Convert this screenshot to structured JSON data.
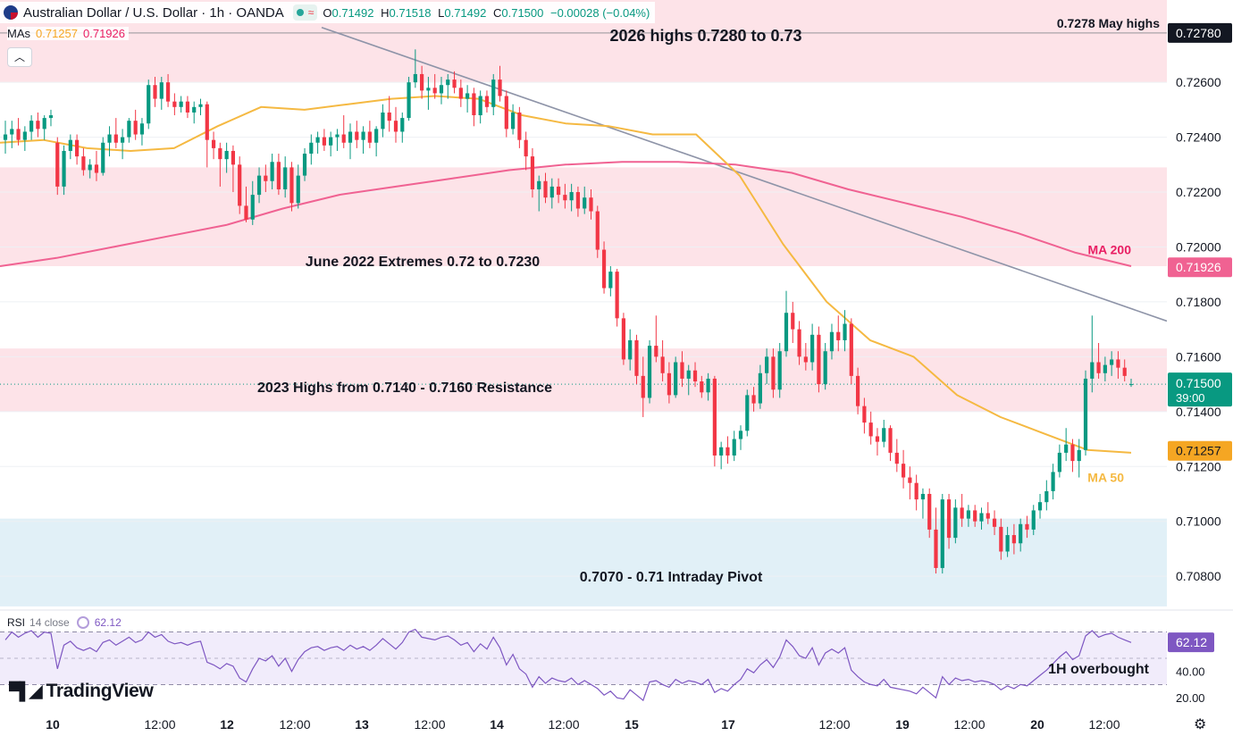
{
  "header": {
    "title": "Australian Dollar / U.S. Dollar · 1h · OANDA",
    "ohlc": {
      "open_label": "O",
      "open": "0.71492",
      "high_label": "H",
      "high": "0.71518",
      "low_label": "L",
      "low": "0.71492",
      "close_label": "C",
      "close": "0.71500",
      "change": "−0.00028 (−0.04%)"
    }
  },
  "indicators": {
    "mas_label": "MAs",
    "ma50_value": "0.71257",
    "ma200_value": "0.71926",
    "rsi_label": "RSI",
    "rsi_params": "14 close",
    "rsi_value": "62.12"
  },
  "branding": {
    "logo_text": "TradingView"
  },
  "colors": {
    "up": "#089981",
    "down": "#f23645",
    "ma50": "#f5b942",
    "ma200": "#f06292",
    "trendline": "#8e94a8",
    "rsi": "#7e57c2",
    "resistance_zone": "#fde3e8",
    "pivot_zone": "#e1f0f7"
  },
  "chart_data": {
    "type": "candlestick",
    "symbol": "AUDUSD",
    "interval": "1h",
    "x_tick_labels": [
      "10",
      "12:00",
      "12",
      "12:00",
      "13",
      "12:00",
      "14",
      "12:00",
      "15",
      "17",
      "12:00",
      "19",
      "12:00",
      "20",
      "12:00"
    ],
    "y_range": [
      0.7068,
      0.729
    ],
    "y_tick_labels": [
      "0.72600",
      "0.72400",
      "0.72200",
      "0.72000",
      "0.71800",
      "0.71600",
      "0.71400",
      "0.71200",
      "0.71000",
      "0.70800"
    ],
    "last_price": {
      "value": 0.715,
      "label": "0.71500",
      "countdown": "39:00"
    },
    "price_tags": [
      {
        "name": "high-marker",
        "value": 0.7278,
        "label": "0.72780"
      },
      {
        "name": "ma200",
        "value": 0.71926,
        "label": "0.71926"
      },
      {
        "name": "ma50",
        "value": 0.71257,
        "label": "0.71257"
      }
    ],
    "zones": [
      {
        "label": "2026 highs 0.7280 to 0.73",
        "from": 0.726,
        "to": 0.73,
        "kind": "resistance"
      },
      {
        "label": "June 2022 Extremes 0.72 to 0.7230",
        "from": 0.7193,
        "to": 0.7229,
        "kind": "resistance"
      },
      {
        "label": "2023 Highs from 0.7140 - 0.7160 Resistance",
        "from": 0.714,
        "to": 0.7163,
        "kind": "resistance"
      },
      {
        "label": "0.7070 - 0.71 Intraday Pivot",
        "from": 0.7069,
        "to": 0.7101,
        "kind": "pivot"
      }
    ],
    "level_lines": [
      {
        "label": "0.7278 May highs",
        "value": 0.7278
      }
    ],
    "ma_labels": [
      {
        "label": "MA 200"
      },
      {
        "label": "MA 50"
      }
    ],
    "trendline": {
      "from": [
        0,
        0.728
      ],
      "to": [
        1,
        0.7173
      ]
    },
    "ma50": [
      0.7238,
      0.7239,
      0.7236,
      0.7235,
      0.7236,
      0.7244,
      0.7251,
      0.725,
      0.7252,
      0.7254,
      0.7255,
      0.7254,
      0.7248,
      0.7245,
      0.7244,
      0.7241,
      0.7241,
      0.7226,
      0.7201,
      0.718,
      0.7166,
      0.716,
      0.7146,
      0.7138,
      0.7132,
      0.7126,
      0.7125
    ],
    "ma200": [
      0.7193,
      0.7196,
      0.72,
      0.7204,
      0.7208,
      0.7214,
      0.7219,
      0.7222,
      0.7225,
      0.7228,
      0.723,
      0.7231,
      0.7231,
      0.723,
      0.7227,
      0.7221,
      0.7216,
      0.7211,
      0.7205,
      0.7198,
      0.7193
    ],
    "candles": [
      [
        0.7239,
        0.7246,
        0.7234,
        0.7241
      ],
      [
        0.7241,
        0.7246,
        0.7236,
        0.7243
      ],
      [
        0.7243,
        0.7247,
        0.7237,
        0.7239
      ],
      [
        0.7239,
        0.7244,
        0.7235,
        0.7242
      ],
      [
        0.7242,
        0.7248,
        0.7239,
        0.7246
      ],
      [
        0.7246,
        0.7249,
        0.724,
        0.7243
      ],
      [
        0.7243,
        0.7248,
        0.7239,
        0.7247
      ],
      [
        0.7247,
        0.725,
        0.7244,
        0.7248
      ],
      [
        0.7238,
        0.724,
        0.7219,
        0.7222
      ],
      [
        0.7222,
        0.7237,
        0.7219,
        0.7235
      ],
      [
        0.7235,
        0.7241,
        0.7232,
        0.7239
      ],
      [
        0.7239,
        0.7241,
        0.723,
        0.7233
      ],
      [
        0.7233,
        0.7236,
        0.7226,
        0.7228
      ],
      [
        0.7228,
        0.7232,
        0.7225,
        0.723
      ],
      [
        0.723,
        0.7235,
        0.7224,
        0.7227
      ],
      [
        0.7227,
        0.724,
        0.7226,
        0.7238
      ],
      [
        0.7238,
        0.7244,
        0.7233,
        0.7241
      ],
      [
        0.7241,
        0.7247,
        0.7236,
        0.7238
      ],
      [
        0.7238,
        0.7243,
        0.7232,
        0.724
      ],
      [
        0.724,
        0.7247,
        0.7238,
        0.7246
      ],
      [
        0.7246,
        0.725,
        0.7239,
        0.7241
      ],
      [
        0.7241,
        0.7247,
        0.7237,
        0.7245
      ],
      [
        0.7245,
        0.7261,
        0.7243,
        0.7259
      ],
      [
        0.7259,
        0.7262,
        0.7251,
        0.7254
      ],
      [
        0.7254,
        0.7262,
        0.725,
        0.726
      ],
      [
        0.726,
        0.7263,
        0.7251,
        0.7253
      ],
      [
        0.7253,
        0.7256,
        0.7248,
        0.7251
      ],
      [
        0.7251,
        0.7255,
        0.7249,
        0.7253
      ],
      [
        0.7253,
        0.7255,
        0.7247,
        0.7249
      ],
      [
        0.7249,
        0.7253,
        0.7245,
        0.7251
      ],
      [
        0.7251,
        0.7254,
        0.7248,
        0.7252
      ],
      [
        0.7252,
        0.7253,
        0.7229,
        0.7239
      ],
      [
        0.7239,
        0.7242,
        0.7232,
        0.7236
      ],
      [
        0.7236,
        0.7238,
        0.7222,
        0.7232
      ],
      [
        0.7232,
        0.7238,
        0.7227,
        0.7235
      ],
      [
        0.7235,
        0.7237,
        0.722,
        0.723
      ],
      [
        0.723,
        0.7233,
        0.7212,
        0.7215
      ],
      [
        0.7215,
        0.7222,
        0.7209,
        0.721
      ],
      [
        0.721,
        0.7224,
        0.7208,
        0.7219
      ],
      [
        0.7219,
        0.7229,
        0.7216,
        0.7226
      ],
      [
        0.7226,
        0.723,
        0.722,
        0.7224
      ],
      [
        0.7224,
        0.7234,
        0.7221,
        0.7231
      ],
      [
        0.7231,
        0.7234,
        0.7219,
        0.7221
      ],
      [
        0.7221,
        0.7233,
        0.7218,
        0.7229
      ],
      [
        0.7229,
        0.7231,
        0.7213,
        0.7216
      ],
      [
        0.7216,
        0.723,
        0.7214,
        0.7226
      ],
      [
        0.7226,
        0.7236,
        0.7224,
        0.7234
      ],
      [
        0.7234,
        0.7241,
        0.723,
        0.7238
      ],
      [
        0.7238,
        0.7242,
        0.7234,
        0.724
      ],
      [
        0.724,
        0.7243,
        0.7235,
        0.7237
      ],
      [
        0.7237,
        0.7242,
        0.7233,
        0.724
      ],
      [
        0.724,
        0.7243,
        0.7235,
        0.7241
      ],
      [
        0.7241,
        0.7248,
        0.7236,
        0.7238
      ],
      [
        0.7238,
        0.7245,
        0.7232,
        0.7242
      ],
      [
        0.7242,
        0.7246,
        0.7236,
        0.7239
      ],
      [
        0.7239,
        0.7244,
        0.7234,
        0.7242
      ],
      [
        0.7242,
        0.7246,
        0.7236,
        0.7238
      ],
      [
        0.7238,
        0.7244,
        0.7233,
        0.7243
      ],
      [
        0.7243,
        0.7252,
        0.724,
        0.7249
      ],
      [
        0.7249,
        0.7255,
        0.7242,
        0.7246
      ],
      [
        0.7246,
        0.7251,
        0.7238,
        0.7242
      ],
      [
        0.7242,
        0.7249,
        0.7238,
        0.7247
      ],
      [
        0.7247,
        0.7262,
        0.7246,
        0.726
      ],
      [
        0.726,
        0.7272,
        0.7258,
        0.7263
      ],
      [
        0.7263,
        0.7266,
        0.7254,
        0.7257
      ],
      [
        0.7257,
        0.7262,
        0.725,
        0.7258
      ],
      [
        0.7258,
        0.7263,
        0.7254,
        0.7256
      ],
      [
        0.7256,
        0.7262,
        0.7252,
        0.7259
      ],
      [
        0.7259,
        0.7263,
        0.7254,
        0.7261
      ],
      [
        0.7261,
        0.7264,
        0.7256,
        0.7258
      ],
      [
        0.7258,
        0.7261,
        0.7251,
        0.7254
      ],
      [
        0.7254,
        0.7259,
        0.7249,
        0.7256
      ],
      [
        0.7256,
        0.7258,
        0.7244,
        0.7248
      ],
      [
        0.7248,
        0.7257,
        0.7245,
        0.7255
      ],
      [
        0.7255,
        0.7257,
        0.7249,
        0.7251
      ],
      [
        0.7251,
        0.7263,
        0.7248,
        0.7261
      ],
      [
        0.7261,
        0.7266,
        0.7253,
        0.7255
      ],
      [
        0.7255,
        0.7257,
        0.724,
        0.7243
      ],
      [
        0.7243,
        0.7252,
        0.7241,
        0.7249
      ],
      [
        0.7249,
        0.7251,
        0.7236,
        0.7239
      ],
      [
        0.7239,
        0.7242,
        0.7228,
        0.7233
      ],
      [
        0.7233,
        0.7236,
        0.7218,
        0.7221
      ],
      [
        0.7221,
        0.7226,
        0.7213,
        0.7224
      ],
      [
        0.7224,
        0.7227,
        0.7216,
        0.7218
      ],
      [
        0.7218,
        0.7225,
        0.7214,
        0.7222
      ],
      [
        0.7222,
        0.7225,
        0.7216,
        0.7219
      ],
      [
        0.7219,
        0.7223,
        0.7214,
        0.7217
      ],
      [
        0.7217,
        0.7223,
        0.7213,
        0.722
      ],
      [
        0.722,
        0.7222,
        0.7211,
        0.7214
      ],
      [
        0.7214,
        0.7222,
        0.7212,
        0.7218
      ],
      [
        0.7218,
        0.7221,
        0.721,
        0.7213
      ],
      [
        0.7213,
        0.7215,
        0.7196,
        0.7199
      ],
      [
        0.7199,
        0.7202,
        0.7183,
        0.7185
      ],
      [
        0.7185,
        0.7193,
        0.7182,
        0.7191
      ],
      [
        0.7191,
        0.7192,
        0.7171,
        0.7174
      ],
      [
        0.7174,
        0.7176,
        0.7157,
        0.7159
      ],
      [
        0.7159,
        0.717,
        0.7155,
        0.7166
      ],
      [
        0.7166,
        0.7168,
        0.715,
        0.7153
      ],
      [
        0.7153,
        0.716,
        0.7138,
        0.7145
      ],
      [
        0.7145,
        0.7166,
        0.7143,
        0.7164
      ],
      [
        0.7164,
        0.7175,
        0.7158,
        0.716
      ],
      [
        0.716,
        0.7166,
        0.7151,
        0.7154
      ],
      [
        0.7154,
        0.7158,
        0.7143,
        0.7146
      ],
      [
        0.7146,
        0.716,
        0.7145,
        0.7158
      ],
      [
        0.7158,
        0.7162,
        0.7149,
        0.7152
      ],
      [
        0.7152,
        0.7157,
        0.7146,
        0.7155
      ],
      [
        0.7155,
        0.7158,
        0.7149,
        0.7151
      ],
      [
        0.7151,
        0.7153,
        0.7145,
        0.7147
      ],
      [
        0.7147,
        0.7154,
        0.7144,
        0.7152
      ],
      [
        0.7152,
        0.7153,
        0.712,
        0.7124
      ],
      [
        0.7124,
        0.7129,
        0.7119,
        0.7127
      ],
      [
        0.7127,
        0.7131,
        0.7121,
        0.7124
      ],
      [
        0.7124,
        0.7133,
        0.7122,
        0.713
      ],
      [
        0.713,
        0.7135,
        0.7126,
        0.7133
      ],
      [
        0.7133,
        0.7148,
        0.7131,
        0.7146
      ],
      [
        0.7146,
        0.7149,
        0.714,
        0.7143
      ],
      [
        0.7143,
        0.7157,
        0.7141,
        0.7154
      ],
      [
        0.7154,
        0.7163,
        0.715,
        0.716
      ],
      [
        0.716,
        0.7163,
        0.7145,
        0.7148
      ],
      [
        0.7148,
        0.7165,
        0.7145,
        0.7162
      ],
      [
        0.7162,
        0.7184,
        0.716,
        0.7176
      ],
      [
        0.7176,
        0.718,
        0.7165,
        0.717
      ],
      [
        0.717,
        0.7173,
        0.7157,
        0.716
      ],
      [
        0.716,
        0.7165,
        0.7155,
        0.7158
      ],
      [
        0.7158,
        0.7172,
        0.7155,
        0.7168
      ],
      [
        0.7168,
        0.7171,
        0.7147,
        0.715
      ],
      [
        0.715,
        0.7165,
        0.7148,
        0.7162
      ],
      [
        0.7162,
        0.7172,
        0.7159,
        0.7169
      ],
      [
        0.7169,
        0.7175,
        0.7162,
        0.7166
      ],
      [
        0.7166,
        0.7177,
        0.7162,
        0.7172
      ],
      [
        0.7172,
        0.7174,
        0.715,
        0.7153
      ],
      [
        0.7153,
        0.7156,
        0.7139,
        0.7142
      ],
      [
        0.7142,
        0.7145,
        0.7132,
        0.7136
      ],
      [
        0.7136,
        0.714,
        0.7128,
        0.7131
      ],
      [
        0.7131,
        0.7134,
        0.7124,
        0.7129
      ],
      [
        0.7129,
        0.7137,
        0.7127,
        0.7134
      ],
      [
        0.7134,
        0.7135,
        0.7122,
        0.7125
      ],
      [
        0.7125,
        0.713,
        0.7118,
        0.7121
      ],
      [
        0.7121,
        0.7126,
        0.7112,
        0.7116
      ],
      [
        0.7116,
        0.712,
        0.7108,
        0.7114
      ],
      [
        0.7114,
        0.7117,
        0.7104,
        0.7108
      ],
      [
        0.7108,
        0.7112,
        0.7101,
        0.711
      ],
      [
        0.711,
        0.7112,
        0.7094,
        0.7097
      ],
      [
        0.7097,
        0.7105,
        0.7081,
        0.7083
      ],
      [
        0.7083,
        0.711,
        0.7081,
        0.7108
      ],
      [
        0.7108,
        0.711,
        0.709,
        0.7094
      ],
      [
        0.7094,
        0.7108,
        0.7092,
        0.7105
      ],
      [
        0.7105,
        0.711,
        0.7098,
        0.7101
      ],
      [
        0.7101,
        0.7106,
        0.7098,
        0.7104
      ],
      [
        0.7104,
        0.7106,
        0.7098,
        0.71
      ],
      [
        0.71,
        0.7105,
        0.7097,
        0.7103
      ],
      [
        0.7103,
        0.7107,
        0.7099,
        0.7101
      ],
      [
        0.7101,
        0.7104,
        0.7095,
        0.7098
      ],
      [
        0.7098,
        0.7101,
        0.7086,
        0.7089
      ],
      [
        0.7089,
        0.7098,
        0.7087,
        0.7095
      ],
      [
        0.7095,
        0.7099,
        0.7088,
        0.7092
      ],
      [
        0.7092,
        0.7101,
        0.7089,
        0.7099
      ],
      [
        0.7099,
        0.7102,
        0.7094,
        0.7097
      ],
      [
        0.7097,
        0.7106,
        0.7095,
        0.7104
      ],
      [
        0.7104,
        0.711,
        0.7101,
        0.7107
      ],
      [
        0.7107,
        0.7115,
        0.7104,
        0.7111
      ],
      [
        0.7111,
        0.7121,
        0.7108,
        0.7118
      ],
      [
        0.7118,
        0.7128,
        0.7116,
        0.7125
      ],
      [
        0.7125,
        0.7134,
        0.7122,
        0.7128
      ],
      [
        0.7128,
        0.713,
        0.7118,
        0.7122
      ],
      [
        0.7122,
        0.713,
        0.7116,
        0.7126
      ],
      [
        0.7126,
        0.7155,
        0.7124,
        0.7152
      ],
      [
        0.7152,
        0.7175,
        0.7147,
        0.7158
      ],
      [
        0.7158,
        0.7165,
        0.7152,
        0.7154
      ],
      [
        0.7154,
        0.716,
        0.7151,
        0.7157
      ],
      [
        0.7157,
        0.7162,
        0.7153,
        0.7159
      ],
      [
        0.7159,
        0.7162,
        0.7152,
        0.7156
      ],
      [
        0.7156,
        0.7159,
        0.7151,
        0.7153
      ],
      [
        0.715,
        0.7152,
        0.7149,
        0.715
      ]
    ],
    "rsi": {
      "label": "RSI 14 close",
      "value": 62.12,
      "y_range": [
        14,
        86
      ],
      "bands": [
        30,
        70
      ],
      "tick_labels": [
        "40.00",
        "20.00"
      ],
      "annotation": "1H overbought",
      "series": [
        64,
        70,
        66,
        69,
        71,
        66,
        70,
        69,
        42,
        60,
        63,
        58,
        56,
        58,
        55,
        62,
        64,
        60,
        63,
        66,
        62,
        64,
        70,
        66,
        68,
        63,
        61,
        62,
        60,
        62,
        63,
        47,
        45,
        42,
        46,
        44,
        35,
        32,
        42,
        50,
        48,
        52,
        44,
        50,
        40,
        49,
        55,
        58,
        59,
        56,
        58,
        59,
        56,
        60,
        57,
        59,
        56,
        60,
        65,
        61,
        57,
        62,
        70,
        72,
        66,
        65,
        64,
        66,
        67,
        64,
        60,
        62,
        55,
        61,
        57,
        66,
        58,
        45,
        53,
        42,
        38,
        28,
        36,
        31,
        35,
        33,
        32,
        35,
        30,
        33,
        30,
        27,
        22,
        25,
        20,
        19,
        26,
        22,
        18,
        32,
        33,
        30,
        28,
        34,
        31,
        33,
        32,
        30,
        34,
        24,
        27,
        25,
        30,
        34,
        42,
        39,
        45,
        49,
        43,
        51,
        64,
        59,
        52,
        50,
        58,
        45,
        54,
        57,
        54,
        58,
        41,
        36,
        32,
        30,
        29,
        34,
        28,
        27,
        26,
        25,
        23,
        28,
        24,
        20,
        36,
        30,
        35,
        33,
        34,
        32,
        33,
        32,
        30,
        26,
        29,
        27,
        30,
        29,
        33,
        37,
        41,
        46,
        51,
        55,
        49,
        52,
        67,
        71,
        66,
        68,
        69,
        66,
        64,
        62
      ]
    }
  }
}
